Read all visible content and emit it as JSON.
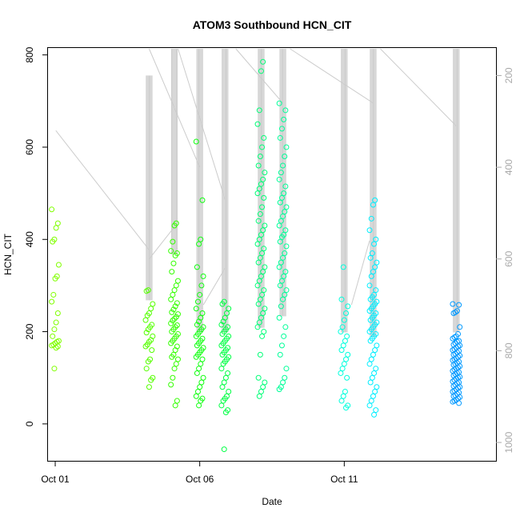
{
  "chart_data": {
    "type": "scatter",
    "title": "ATOM3 Southbound HCN_CIT",
    "xlabel": "Date",
    "ylabel": "HCN_CIT",
    "xlim": [
      "2017-09-30T18:00",
      "2017-10-16T06:00"
    ],
    "ylim": [
      -80,
      815
    ],
    "x_ticks": [
      {
        "date": "2017-10-01",
        "label": "Oct 01"
      },
      {
        "date": "2017-10-06",
        "label": "Oct 06"
      },
      {
        "date": "2017-10-11",
        "label": "Oct 11"
      }
    ],
    "y_ticks": [
      0,
      200,
      400,
      600,
      800
    ],
    "y2_label": "",
    "y2_ticks": [
      200,
      400,
      600,
      800,
      1000
    ],
    "y2_reversed": true,
    "y2_range_at_axis_ends": [
      1040,
      140
    ],
    "grid": false,
    "legend": "none",
    "marker": "open-circle",
    "altitude_trace_color": "#cccccc",
    "clusters": [
      {
        "date": "2017-10-01",
        "color": "#80ff00",
        "values": [
          465,
          435,
          425,
          400,
          395,
          345,
          320,
          315,
          280,
          265,
          240,
          220,
          205,
          190,
          180,
          178,
          175,
          172,
          170,
          168,
          165,
          120
        ],
        "altitude_min": 200,
        "altitude_max": 200
      },
      {
        "date": "2017-10-04T06:00",
        "color": "#55ff00",
        "values": [
          290,
          288,
          260,
          250,
          240,
          235,
          225,
          215,
          210,
          205,
          198,
          190,
          182,
          178,
          172,
          168,
          160,
          140,
          135,
          120,
          100,
          95,
          80
        ],
        "altitude_min": 200,
        "altitude_max": 690
      },
      {
        "date": "2017-10-05T03:00",
        "color": "#33ff00",
        "values": [
          435,
          430,
          395,
          375,
          370,
          365,
          348,
          330,
          310,
          300,
          290,
          280,
          270,
          262,
          255,
          248,
          242,
          238,
          232,
          228,
          224,
          218,
          214,
          210,
          205,
          200,
          195,
          190,
          185,
          180,
          175,
          168,
          160,
          150,
          145,
          140,
          130,
          120,
          100,
          85,
          50,
          40
        ],
        "altitude_min": 140,
        "altitude_max": 590
      },
      {
        "date": "2017-10-06",
        "color": "#11ff11",
        "values": [
          612,
          485,
          400,
          390,
          340,
          320,
          300,
          280,
          265,
          250,
          240,
          230,
          222,
          215,
          210,
          205,
          200,
          195,
          190,
          185,
          180,
          175,
          170,
          165,
          160,
          155,
          150,
          145,
          140,
          130,
          120,
          110,
          100,
          90,
          80,
          70,
          60,
          55,
          50,
          40
        ],
        "altitude_min": 140,
        "altitude_max": 760
      },
      {
        "date": "2017-10-06T21:00",
        "color": "#00ff44",
        "values": [
          265,
          260,
          250,
          240,
          230,
          222,
          215,
          210,
          205,
          200,
          195,
          190,
          185,
          180,
          175,
          170,
          165,
          160,
          155,
          150,
          145,
          140,
          135,
          130,
          120,
          110,
          100,
          90,
          80,
          70,
          60,
          55,
          50,
          40,
          30,
          25,
          -55
        ],
        "altitude_min": 140,
        "altitude_max": 760
      },
      {
        "date": "2017-10-08T03:00",
        "color": "#00ff77",
        "values": [
          785,
          765,
          680,
          650,
          620,
          600,
          580,
          560,
          545,
          530,
          520,
          510,
          500,
          490,
          470,
          455,
          440,
          430,
          420,
          410,
          400,
          390,
          380,
          370,
          360,
          350,
          340,
          330,
          320,
          310,
          300,
          290,
          280,
          270,
          260,
          250,
          240,
          230,
          220,
          210,
          200,
          190,
          150,
          100,
          90,
          80,
          70,
          60
        ],
        "altitude_min": 140,
        "altitude_max": 750
      },
      {
        "date": "2017-10-08T21:00",
        "color": "#00ff99",
        "values": [
          695,
          680,
          660,
          640,
          620,
          600,
          580,
          560,
          545,
          530,
          515,
          500,
          490,
          480,
          470,
          460,
          450,
          440,
          430,
          420,
          410,
          405,
          395,
          385,
          370,
          360,
          350,
          340,
          330,
          320,
          310,
          300,
          290,
          280,
          270,
          255,
          230,
          210,
          190,
          170,
          150,
          120,
          100,
          90,
          80,
          75
        ],
        "altitude_min": 140,
        "altitude_max": 725
      },
      {
        "date": "2017-10-11",
        "color": "#00ffdd",
        "values": [
          340,
          270,
          255,
          240,
          225,
          210,
          200,
          190,
          180,
          170,
          160,
          150,
          140,
          130,
          120,
          110,
          100,
          70,
          60,
          50,
          40,
          35
        ],
        "altitude_min": 140,
        "altitude_max": 760
      },
      {
        "date": "2017-10-12T00:00",
        "color": "#00eeff",
        "values": [
          485,
          475,
          445,
          420,
          400,
          390,
          370,
          360,
          350,
          340,
          330,
          320,
          300,
          290,
          280,
          275,
          270,
          265,
          260,
          255,
          250,
          245,
          240,
          235,
          230,
          225,
          220,
          215,
          210,
          205,
          200,
          195,
          190,
          185,
          180,
          170,
          160,
          150,
          140,
          130,
          120,
          110,
          100,
          90,
          80,
          70,
          60,
          50,
          40,
          30,
          20
        ],
        "altitude_min": 140,
        "altitude_max": 770
      },
      {
        "date": "2017-10-14T21:00",
        "color": "#0099ff",
        "values": [
          260,
          258,
          245,
          242,
          240,
          210,
          195,
          190,
          188,
          185,
          180,
          178,
          175,
          172,
          170,
          168,
          165,
          162,
          160,
          158,
          155,
          152,
          150,
          148,
          145,
          142,
          140,
          138,
          135,
          132,
          130,
          128,
          125,
          122,
          120,
          118,
          115,
          112,
          110,
          108,
          105,
          102,
          100,
          98,
          95,
          92,
          90,
          88,
          85,
          82,
          80,
          78,
          75,
          72,
          70,
          68,
          65,
          62,
          60,
          58,
          55,
          52,
          50,
          48,
          45
        ],
        "altitude_min": 140,
        "altitude_max": 760
      }
    ],
    "altitude_transits": [
      {
        "from_date": "2017-10-01T00:30",
        "from_altitude": 320,
        "to_date": "2017-10-04T06:00",
        "to_altitude": 580
      },
      {
        "from_date": "2017-10-04T06:00",
        "from_altitude": 600,
        "to_date": "2017-10-05T03:00",
        "to_altitude": 530
      },
      {
        "from_date": "2017-10-04T06:00",
        "from_altitude": 140,
        "to_date": "2017-10-06T00:00",
        "to_altitude": 400
      },
      {
        "from_date": "2017-10-05T06:00",
        "from_altitude": 140,
        "to_date": "2017-10-06T21:00",
        "to_altitude": 470
      },
      {
        "from_date": "2017-10-06T03:00",
        "from_altitude": 700,
        "to_date": "2017-10-06T21:00",
        "to_altitude": 620
      },
      {
        "from_date": "2017-10-07T06:00",
        "from_altitude": 140,
        "to_date": "2017-10-08T21:00",
        "to_altitude": 260
      },
      {
        "from_date": "2017-10-09T03:00",
        "from_altitude": 140,
        "to_date": "2017-10-12T00:00",
        "to_altitude": 260
      },
      {
        "from_date": "2017-10-12T06:00",
        "from_altitude": 140,
        "to_date": "2017-10-14T21:00",
        "to_altitude": 310
      },
      {
        "from_date": "2017-10-11T06:00",
        "from_altitude": 700,
        "to_date": "2017-10-11T21:00",
        "to_altitude": 560
      }
    ]
  }
}
